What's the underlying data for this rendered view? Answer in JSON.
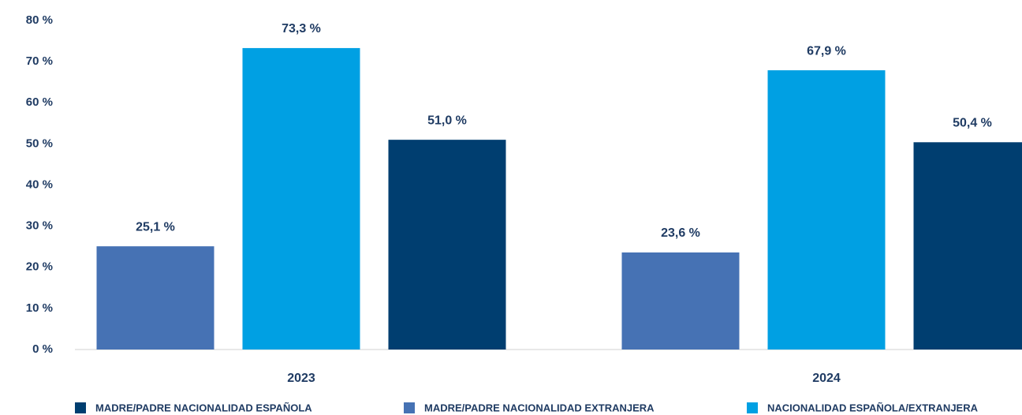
{
  "chart_data": {
    "type": "bar",
    "categories": [
      "2023",
      "2024"
    ],
    "series": [
      {
        "name": "MADRE/PADRE NACIONALIDAD ESPAÑOLA",
        "color": "#003e70",
        "values": [
          51.0,
          50.4
        ],
        "value_labels": [
          "51,0 %",
          "50,4 %"
        ]
      },
      {
        "name": "MADRE/PADRE NACIONALIDAD EXTRANJERA",
        "color": "#4672b4",
        "values": [
          25.1,
          23.6
        ],
        "value_labels": [
          "25,1 %",
          "23,6 %"
        ]
      },
      {
        "name": "NACIONALIDAD ESPAÑOLA/EXTRANJERA",
        "color": "#00a0e3",
        "values": [
          73.3,
          67.9
        ],
        "value_labels": [
          "73,3 %",
          "67,9 %"
        ]
      }
    ],
    "ylim": [
      0,
      80
    ],
    "yticks": [
      {
        "value": 0,
        "label": "0 %"
      },
      {
        "value": 10,
        "label": "10 %"
      },
      {
        "value": 20,
        "label": "20 %"
      },
      {
        "value": 30,
        "label": "30 %"
      },
      {
        "value": 40,
        "label": "40 %"
      },
      {
        "value": 50,
        "label": "50 %"
      },
      {
        "value": 60,
        "label": "60 %"
      },
      {
        "value": 70,
        "label": "70 %"
      },
      {
        "value": 80,
        "label": "80 %"
      }
    ],
    "grid": false,
    "legend": "bottom"
  }
}
